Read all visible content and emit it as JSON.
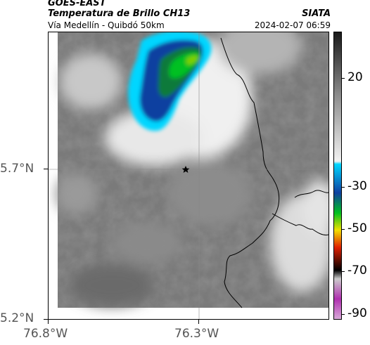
{
  "header": {
    "satellite": "GOES-EAST",
    "product": "Temperatura de Brillo CH13",
    "region": "Vía Medellín - Quibdó 50km",
    "org": "SIATA",
    "timestamp": "2024-02-07 06:59"
  },
  "map": {
    "lat_labels": [
      "5.7°N",
      "5.2°N"
    ],
    "lon_labels": [
      "76.8°W",
      "76.3°W"
    ],
    "marker": "star-icon"
  },
  "colorbar": {
    "labels": [
      "20",
      "-30",
      "-50",
      "-70",
      "-90"
    ],
    "colors": {
      "warm_dark": "#1a1a1a",
      "warm_light": "#f2f2f2",
      "cyan": "#00d6ff",
      "blue": "#1040a0",
      "green": "#00c020",
      "yellow": "#f2e000",
      "red": "#e02000",
      "black": "#000000",
      "magenta": "#b030b0"
    }
  }
}
